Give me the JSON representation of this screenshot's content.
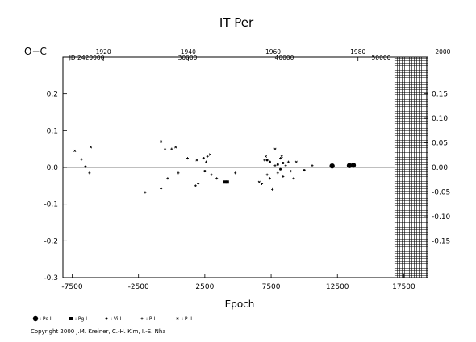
{
  "chart_data": {
    "type": "scatter",
    "title": "IT  Per",
    "xlabel": "Epoch",
    "ylabel": "O−C",
    "xlim": [
      -8200,
      19300
    ],
    "ylim": [
      -0.3,
      0.3
    ],
    "x_ticks": [
      -7500,
      -2500,
      2500,
      7500,
      12500,
      17500
    ],
    "x_tick_labels": [
      "-7500",
      "-2500",
      "2500",
      "7500",
      "12500",
      "17500"
    ],
    "y_ticks": [
      -0.3,
      -0.2,
      -0.1,
      0.0,
      0.1,
      0.2
    ],
    "y_tick_labels": [
      "-0.3",
      "-0.2",
      "-0.1",
      "0.0",
      "0.1",
      "0.2"
    ],
    "right_y_ticks": [
      -0.15,
      -0.1,
      -0.05,
      0.0,
      0.05,
      0.1,
      0.15
    ],
    "right_y_tick_labels": [
      "-0.15",
      "-0.10",
      "-0.05",
      "0.00",
      "0.05",
      "0.10",
      "0.15"
    ],
    "top_year_labels": [
      {
        "label": "1920",
        "epoch": -5150
      },
      {
        "label": "1940",
        "epoch": 1250
      },
      {
        "label": "1960",
        "epoch": 7650
      },
      {
        "label": "1980",
        "epoch": 14050
      },
      {
        "label": "2000",
        "epoch": 20450
      }
    ],
    "top_jd_labels": [
      {
        "label": "JD 2420000",
        "epoch": -6400
      },
      {
        "label": "30000",
        "epoch": 1200
      },
      {
        "label": "40000",
        "epoch": 8500
      },
      {
        "label": "50000",
        "epoch": 15800
      }
    ],
    "future_region": {
      "from_epoch": 16800,
      "to_epoch": 19300
    },
    "zero_line": 0.0,
    "series": [
      {
        "name": ": Pe I",
        "marker": "dot-large",
        "points": [
          [
            12100,
            0.004
          ],
          [
            13400,
            0.005
          ],
          [
            13700,
            0.006
          ]
        ]
      },
      {
        "name": ": Pg I",
        "marker": "square",
        "points": [
          [
            4200,
            -0.04
          ],
          [
            4000,
            -0.04
          ]
        ]
      },
      {
        "name": ": Vi I",
        "marker": "dot-small",
        "points": [
          [
            -6500,
            0.002
          ],
          [
            2400,
            0.025
          ],
          [
            2500,
            -0.01
          ],
          [
            7200,
            0.02
          ],
          [
            7400,
            0.015
          ],
          [
            8000,
            0.008
          ],
          [
            8400,
            0.012
          ],
          [
            10000,
            -0.008
          ],
          [
            8200,
            -0.005
          ]
        ]
      },
      {
        "name": ": P I",
        "marker": "plus",
        "points": [
          [
            -6800,
            0.022
          ],
          [
            -6200,
            -0.015
          ],
          [
            -2000,
            -0.068
          ],
          [
            -800,
            -0.058
          ],
          [
            -500,
            0.05
          ],
          [
            -300,
            -0.03
          ],
          [
            0,
            0.05
          ],
          [
            500,
            -0.015
          ],
          [
            1200,
            0.025
          ],
          [
            1800,
            -0.05
          ],
          [
            2000,
            -0.045
          ],
          [
            2600,
            0.015
          ],
          [
            2700,
            0.03
          ],
          [
            3000,
            -0.02
          ],
          [
            3400,
            -0.03
          ],
          [
            4800,
            -0.015
          ],
          [
            6800,
            -0.045
          ],
          [
            7000,
            0.02
          ],
          [
            7200,
            -0.02
          ],
          [
            7400,
            -0.03
          ],
          [
            7600,
            -0.06
          ],
          [
            7800,
            0.005
          ],
          [
            8000,
            -0.015
          ],
          [
            8200,
            0.025
          ],
          [
            8400,
            -0.025
          ],
          [
            8600,
            0.005
          ],
          [
            8800,
            0.015
          ],
          [
            9000,
            -0.01
          ],
          [
            9200,
            -0.03
          ],
          [
            10600,
            0.005
          ]
        ]
      },
      {
        "name": ": P II",
        "marker": "cross",
        "points": [
          [
            -7300,
            0.045
          ],
          [
            -6100,
            0.055
          ],
          [
            -800,
            0.07
          ],
          [
            300,
            0.055
          ],
          [
            1900,
            0.02
          ],
          [
            2900,
            0.035
          ],
          [
            7100,
            0.03
          ],
          [
            7800,
            0.05
          ],
          [
            8300,
            0.03
          ],
          [
            9400,
            0.015
          ],
          [
            6600,
            -0.04
          ]
        ]
      }
    ]
  },
  "copyright": "Copyright 2000 J.M. Kreiner, C.-H. Kim, I.-S. Nha"
}
